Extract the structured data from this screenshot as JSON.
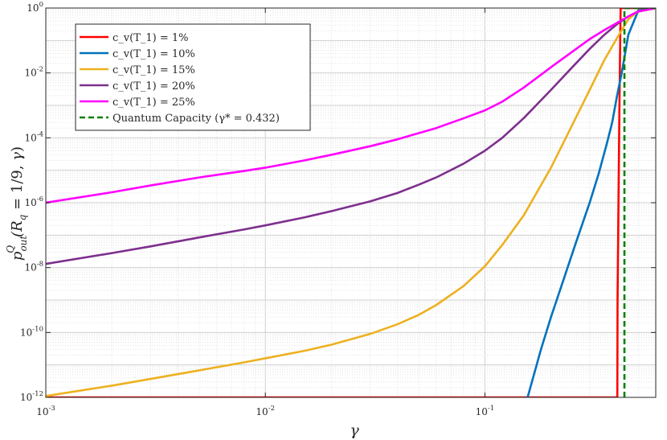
{
  "chart_data": {
    "type": "line",
    "x_scale": "log",
    "y_scale": "log",
    "xlim": [
      0.001,
      0.6
    ],
    "ylim": [
      1e-12,
      1
    ],
    "grid": true,
    "legend_position": "top-left",
    "xlabel": "γ",
    "ylabel": "p^Q_out(R_q = 1/9, γ)",
    "x_ticks": [
      {
        "mant": "10",
        "exp": "-3"
      },
      {
        "mant": "10",
        "exp": "-2"
      },
      {
        "mant": "10",
        "exp": "-1"
      }
    ],
    "y_ticks": [
      {
        "mant": "10",
        "exp": "-12"
      },
      {
        "mant": "10",
        "exp": "-10"
      },
      {
        "mant": "10",
        "exp": "-8"
      },
      {
        "mant": "10",
        "exp": "-6"
      },
      {
        "mant": "10",
        "exp": "-4"
      },
      {
        "mant": "10",
        "exp": "-2"
      },
      {
        "mant": "10",
        "exp": "0"
      }
    ],
    "series": [
      {
        "name": "c_v(T_1) = 1%",
        "color": "#ff0000",
        "style": "solid",
        "x": [
          0.001,
          0.401,
          0.402,
          0.41,
          0.415,
          0.6
        ],
        "y": [
          1e-12,
          1e-12,
          1e-09,
          0.001,
          1,
          1
        ]
      },
      {
        "name": "c_v(T_1) = 10%",
        "color": "#0072bd",
        "style": "solid",
        "x": [
          0.1565,
          0.18,
          0.2,
          0.23,
          0.26,
          0.3,
          0.33,
          0.36,
          0.38,
          0.4,
          0.42,
          0.45,
          0.5,
          0.6
        ],
        "y": [
          1e-12,
          3e-11,
          3e-10,
          5e-09,
          6e-08,
          1e-06,
          8e-06,
          7e-05,
          0.0003,
          0.002,
          0.01,
          0.15,
          0.85,
          1
        ]
      },
      {
        "name": "c_v(T_1) = 15%",
        "color": "#edb120",
        "style": "solid",
        "x": [
          0.001,
          0.002,
          0.003,
          0.005,
          0.008,
          0.01,
          0.015,
          0.02,
          0.03,
          0.04,
          0.05,
          0.06,
          0.08,
          0.1,
          0.12,
          0.15,
          0.2,
          0.25,
          0.3,
          0.35,
          0.4,
          0.45,
          0.5,
          0.6
        ],
        "y": [
          1.1e-12,
          2.3e-12,
          3.7e-12,
          6.8e-12,
          1.2e-11,
          1.6e-11,
          2.7e-11,
          4.2e-11,
          9e-11,
          1.8e-10,
          3.5e-10,
          7e-10,
          2.7e-09,
          1.1e-08,
          5e-08,
          4e-07,
          1.2e-05,
          0.00025,
          0.003,
          0.025,
          0.12,
          0.45,
          0.8,
          1
        ]
      },
      {
        "name": "c_v(T_1) = 20%",
        "color": "#7e2f8e",
        "style": "solid",
        "x": [
          0.001,
          0.002,
          0.003,
          0.005,
          0.008,
          0.01,
          0.015,
          0.02,
          0.03,
          0.04,
          0.05,
          0.06,
          0.08,
          0.1,
          0.12,
          0.15,
          0.2,
          0.25,
          0.3,
          0.35,
          0.4,
          0.45,
          0.5,
          0.6
        ],
        "y": [
          1.3e-08,
          2.8e-08,
          4.5e-08,
          8.5e-08,
          1.5e-07,
          2e-07,
          3.5e-07,
          5.5e-07,
          1.1e-06,
          2e-06,
          3.6e-06,
          6e-06,
          1.6e-05,
          4e-05,
          0.0001,
          0.0004,
          0.003,
          0.015,
          0.055,
          0.15,
          0.32,
          0.55,
          0.8,
          1
        ]
      },
      {
        "name": "c_v(T_1) = 25%",
        "color": "#ff00ff",
        "style": "solid",
        "x": [
          0.001,
          0.002,
          0.003,
          0.005,
          0.008,
          0.01,
          0.015,
          0.02,
          0.03,
          0.04,
          0.05,
          0.06,
          0.08,
          0.1,
          0.12,
          0.15,
          0.2,
          0.25,
          0.3,
          0.35,
          0.4,
          0.45,
          0.5,
          0.6
        ],
        "y": [
          1e-06,
          2.1e-06,
          3.4e-06,
          6e-06,
          9.5e-06,
          1.2e-05,
          2e-05,
          3e-05,
          5.5e-05,
          9e-05,
          0.00014,
          0.0002,
          0.0004,
          0.0007,
          0.0013,
          0.0035,
          0.015,
          0.045,
          0.11,
          0.21,
          0.35,
          0.55,
          0.78,
          1
        ]
      },
      {
        "name": "Quantum Capacity (γ* = 0.432)",
        "color": "#008000",
        "style": "dashed",
        "x": [
          0.432,
          0.432,
          0.6
        ],
        "y": [
          1e-12,
          1,
          1
        ]
      }
    ]
  }
}
